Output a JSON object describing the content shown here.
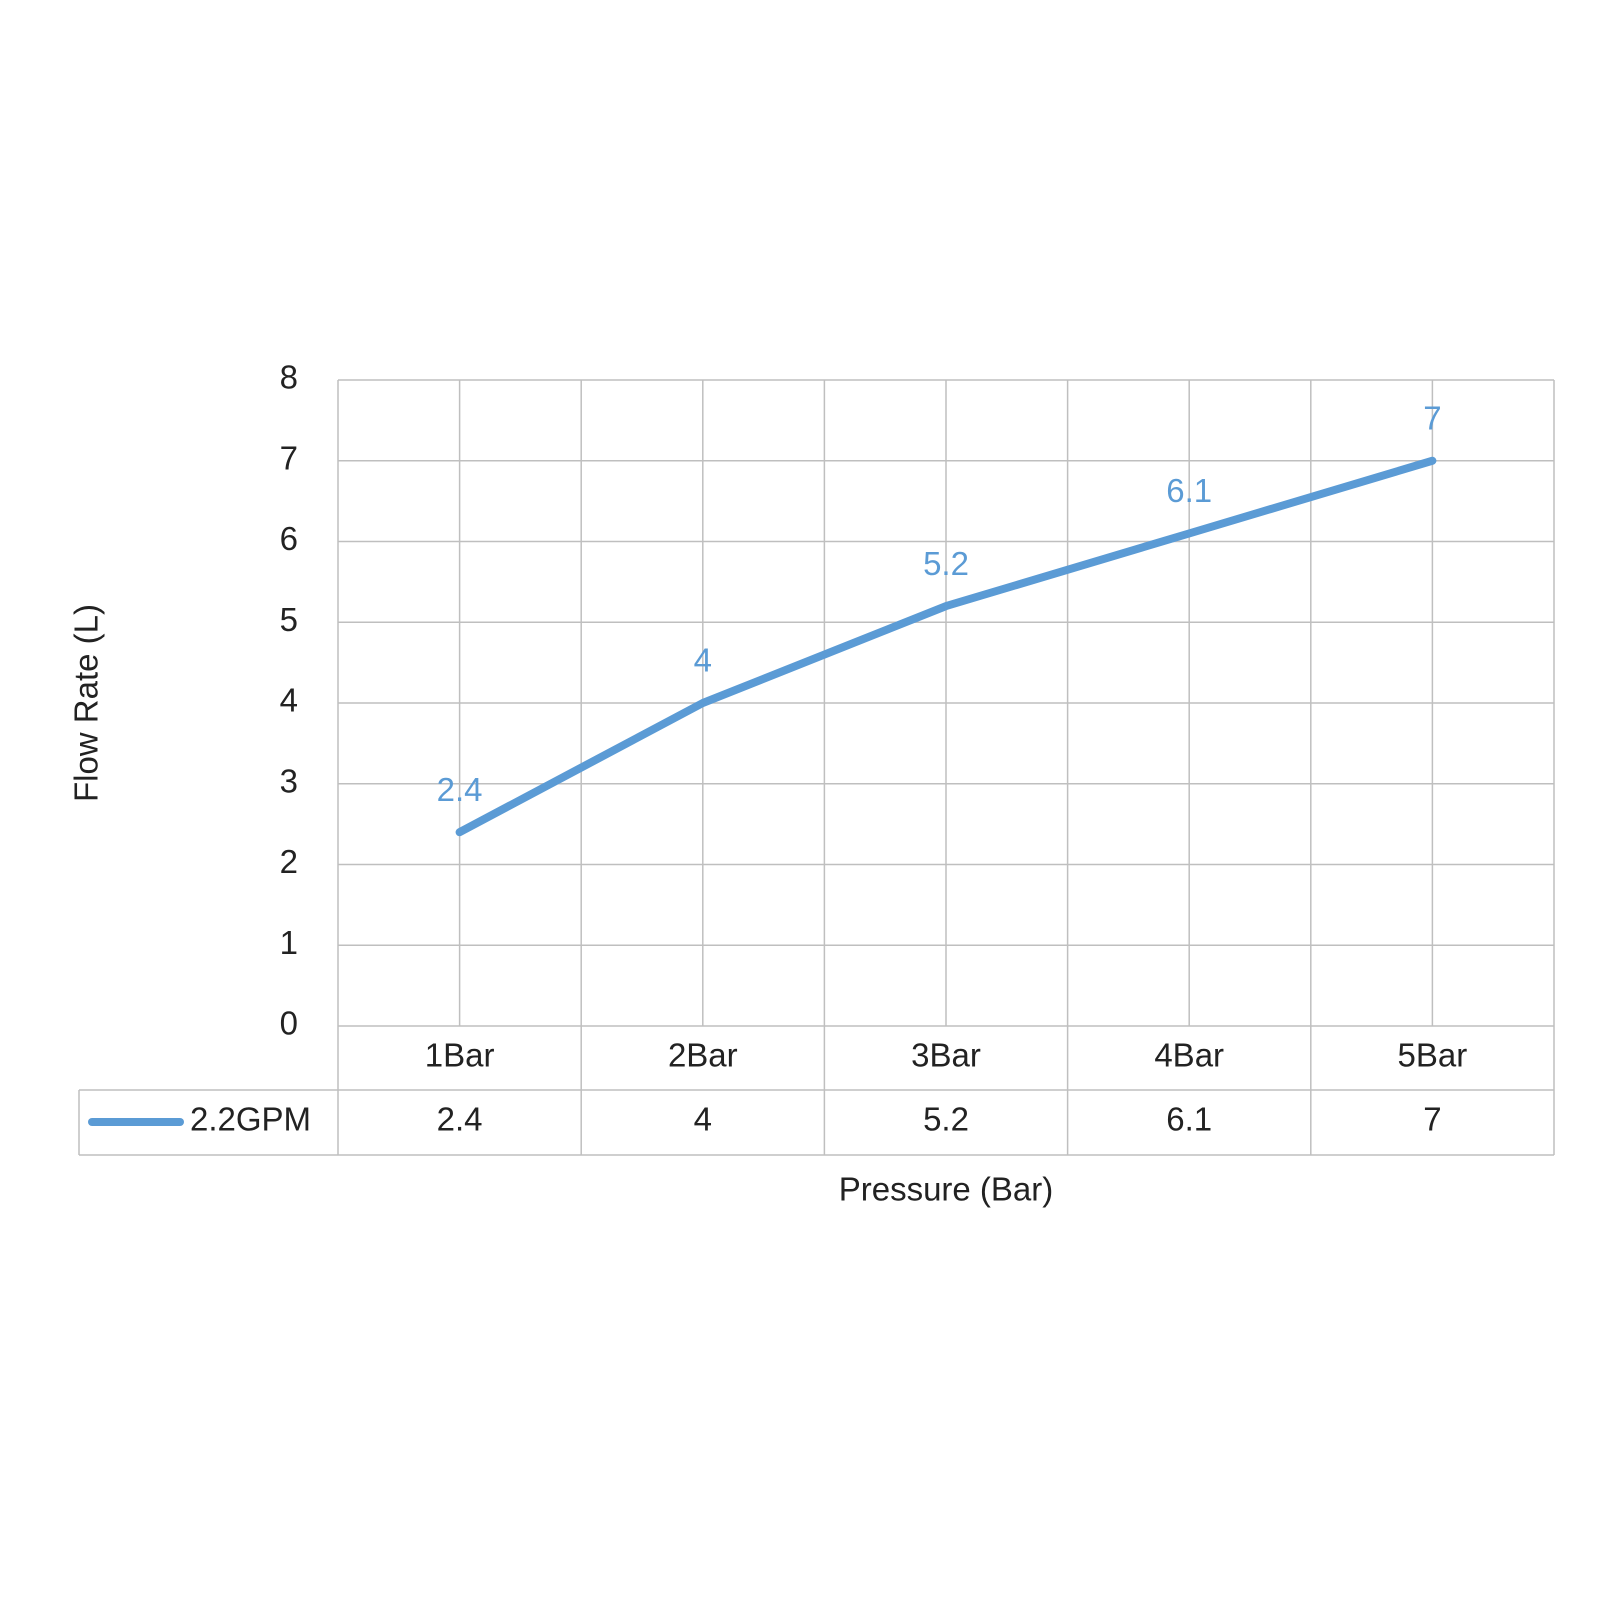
{
  "chart_data": {
    "type": "line",
    "x_label": "Pressure (Bar)",
    "y_label": "Flow Rate (L)",
    "categories": [
      "1Bar",
      "2Bar",
      "3Bar",
      "4Bar",
      "5Bar"
    ],
    "series": [
      {
        "name": "2.2GPM",
        "color": "#5b9bd5",
        "values": [
          2.4,
          4,
          5.2,
          6.1,
          7
        ]
      }
    ],
    "ylim": [
      0,
      8
    ],
    "yticks": [
      0,
      1,
      2,
      3,
      4,
      5,
      6,
      7,
      8
    ],
    "grid": true,
    "data_labels": true,
    "data_table": true
  }
}
